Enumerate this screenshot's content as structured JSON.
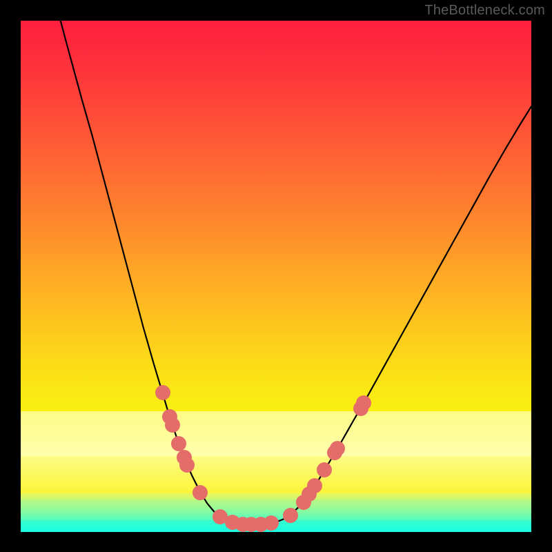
{
  "watermark": {
    "text": "TheBottleneck.com"
  },
  "layout": {
    "image_size": 800,
    "plot_margin": 30,
    "plot_size": 740
  },
  "background": {
    "type": "vertical-gradient",
    "bands": [
      {
        "y": 0.0,
        "h": 0.06,
        "from": "#fe1f3d",
        "to": "#fe2b3c"
      },
      {
        "y": 0.06,
        "h": 0.06,
        "from": "#fe2b3c",
        "to": "#fe3a3a"
      },
      {
        "y": 0.12,
        "h": 0.06,
        "from": "#fe3a3a",
        "to": "#fe4a38"
      },
      {
        "y": 0.18,
        "h": 0.06,
        "from": "#fe4a38",
        "to": "#fe5b35"
      },
      {
        "y": 0.24,
        "h": 0.06,
        "from": "#fe5b35",
        "to": "#fe6c32"
      },
      {
        "y": 0.3,
        "h": 0.06,
        "from": "#fe6c32",
        "to": "#fe7e2f"
      },
      {
        "y": 0.36,
        "h": 0.06,
        "from": "#fe7e2f",
        "to": "#fe902b"
      },
      {
        "y": 0.42,
        "h": 0.06,
        "from": "#fe902b",
        "to": "#fea327"
      },
      {
        "y": 0.48,
        "h": 0.06,
        "from": "#fea327",
        "to": "#feb522"
      },
      {
        "y": 0.54,
        "h": 0.06,
        "from": "#feb522",
        "to": "#fdc71d"
      },
      {
        "y": 0.6,
        "h": 0.06,
        "from": "#fdc71d",
        "to": "#fcd818"
      },
      {
        "y": 0.66,
        "h": 0.06,
        "from": "#fcd818",
        "to": "#fae714"
      },
      {
        "y": 0.72,
        "h": 0.045,
        "from": "#fae714",
        "to": "#f9f012"
      },
      {
        "y": 0.765,
        "h": 0.088,
        "from": "#fdfc85",
        "to": "#fefeae"
      },
      {
        "y": 0.853,
        "h": 0.073,
        "from": "#fdfc85",
        "to": "#fbf437"
      },
      {
        "y": 0.926,
        "h": 0.012,
        "from": "#e7f75c",
        "to": "#c9f877"
      },
      {
        "y": 0.938,
        "h": 0.01,
        "from": "#b8f884",
        "to": "#a4f990"
      },
      {
        "y": 0.948,
        "h": 0.01,
        "from": "#a4f990",
        "to": "#8cfa9e"
      },
      {
        "y": 0.958,
        "h": 0.01,
        "from": "#8cfa9e",
        "to": "#71fbad"
      },
      {
        "y": 0.968,
        "h": 0.01,
        "from": "#71fbad",
        "to": "#55fcbd"
      },
      {
        "y": 0.978,
        "h": 0.022,
        "from": "#38fdce",
        "to": "#18fee0"
      }
    ]
  },
  "curve": {
    "type": "v-curve",
    "stroke_color": "#000000",
    "stroke_width": 2.2,
    "points": [
      {
        "x": 0.078,
        "y": 0.0
      },
      {
        "x": 0.09,
        "y": 0.045
      },
      {
        "x": 0.105,
        "y": 0.1
      },
      {
        "x": 0.12,
        "y": 0.155
      },
      {
        "x": 0.14,
        "y": 0.225
      },
      {
        "x": 0.16,
        "y": 0.3
      },
      {
        "x": 0.18,
        "y": 0.375
      },
      {
        "x": 0.2,
        "y": 0.45
      },
      {
        "x": 0.22,
        "y": 0.525
      },
      {
        "x": 0.24,
        "y": 0.6
      },
      {
        "x": 0.26,
        "y": 0.67
      },
      {
        "x": 0.275,
        "y": 0.72
      },
      {
        "x": 0.29,
        "y": 0.77
      },
      {
        "x": 0.305,
        "y": 0.815
      },
      {
        "x": 0.32,
        "y": 0.855
      },
      {
        "x": 0.335,
        "y": 0.89
      },
      {
        "x": 0.35,
        "y": 0.92
      },
      {
        "x": 0.365,
        "y": 0.945
      },
      {
        "x": 0.38,
        "y": 0.963
      },
      {
        "x": 0.395,
        "y": 0.975
      },
      {
        "x": 0.41,
        "y": 0.982
      },
      {
        "x": 0.425,
        "y": 0.985
      },
      {
        "x": 0.445,
        "y": 0.986
      },
      {
        "x": 0.465,
        "y": 0.986
      },
      {
        "x": 0.485,
        "y": 0.985
      },
      {
        "x": 0.5,
        "y": 0.982
      },
      {
        "x": 0.515,
        "y": 0.976
      },
      {
        "x": 0.53,
        "y": 0.966
      },
      {
        "x": 0.545,
        "y": 0.952
      },
      {
        "x": 0.56,
        "y": 0.934
      },
      {
        "x": 0.58,
        "y": 0.905
      },
      {
        "x": 0.6,
        "y": 0.872
      },
      {
        "x": 0.625,
        "y": 0.83
      },
      {
        "x": 0.65,
        "y": 0.786
      },
      {
        "x": 0.68,
        "y": 0.734
      },
      {
        "x": 0.71,
        "y": 0.68
      },
      {
        "x": 0.74,
        "y": 0.626
      },
      {
        "x": 0.77,
        "y": 0.572
      },
      {
        "x": 0.8,
        "y": 0.518
      },
      {
        "x": 0.83,
        "y": 0.464
      },
      {
        "x": 0.86,
        "y": 0.41
      },
      {
        "x": 0.89,
        "y": 0.356
      },
      {
        "x": 0.92,
        "y": 0.302
      },
      {
        "x": 0.95,
        "y": 0.25
      },
      {
        "x": 0.98,
        "y": 0.2
      },
      {
        "x": 1.0,
        "y": 0.168
      }
    ]
  },
  "markers": {
    "color": "#e46d6a",
    "radius_px": 11,
    "points": [
      {
        "x": 0.278,
        "y": 0.728
      },
      {
        "x": 0.292,
        "y": 0.775
      },
      {
        "x": 0.297,
        "y": 0.792
      },
      {
        "x": 0.31,
        "y": 0.828
      },
      {
        "x": 0.32,
        "y": 0.856
      },
      {
        "x": 0.325,
        "y": 0.87
      },
      {
        "x": 0.352,
        "y": 0.924
      },
      {
        "x": 0.39,
        "y": 0.972
      },
      {
        "x": 0.415,
        "y": 0.983
      },
      {
        "x": 0.435,
        "y": 0.986
      },
      {
        "x": 0.452,
        "y": 0.986
      },
      {
        "x": 0.47,
        "y": 0.986
      },
      {
        "x": 0.49,
        "y": 0.984
      },
      {
        "x": 0.528,
        "y": 0.969
      },
      {
        "x": 0.554,
        "y": 0.943
      },
      {
        "x": 0.565,
        "y": 0.927
      },
      {
        "x": 0.576,
        "y": 0.911
      },
      {
        "x": 0.595,
        "y": 0.88
      },
      {
        "x": 0.615,
        "y": 0.846
      },
      {
        "x": 0.62,
        "y": 0.838
      },
      {
        "x": 0.666,
        "y": 0.759
      },
      {
        "x": 0.672,
        "y": 0.748
      }
    ]
  }
}
